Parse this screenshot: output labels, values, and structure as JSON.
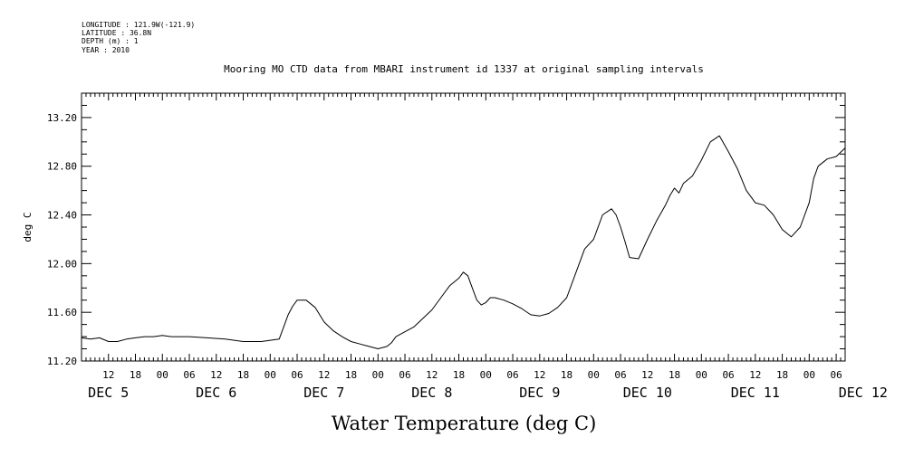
{
  "chart_data": {
    "type": "line",
    "title": "Mooring MO CTD data from MBARI instrument id 1337 at original sampling intervals",
    "header": {
      "longitude": "LONGITUDE : 121.9W(-121.9)",
      "latitude": "LATITUDE : 36.8N",
      "depth": "DEPTH (m) : 1",
      "year": "YEAR : 2010"
    },
    "xlabel": "Water Temperature (deg C)",
    "ylabel": "deg C",
    "xlim_hours": [
      0,
      170
    ],
    "ylim": [
      11.2,
      13.4
    ],
    "x_unit": "hours since 2010-12-05 06:00",
    "yticks": [
      11.2,
      11.6,
      12.0,
      12.4,
      12.8,
      13.2
    ],
    "ytick_labels": [
      "11.20",
      "11.60",
      "12.00",
      "12.40",
      "12.80",
      "13.20"
    ],
    "hour_tick_labels": [
      "12",
      "18",
      "00",
      "06",
      "12",
      "18",
      "00",
      "06",
      "12",
      "18",
      "00",
      "06",
      "12",
      "18",
      "00",
      "06",
      "12",
      "18",
      "00",
      "06",
      "12",
      "18",
      "00",
      "06",
      "12",
      "18",
      "00",
      "06"
    ],
    "day_labels": [
      "DEC  5",
      "DEC  6",
      "DEC  7",
      "DEC  8",
      "DEC  9",
      "DEC 10",
      "DEC 11",
      "DEC 12"
    ],
    "grid": false,
    "series": [
      {
        "x": [
          0,
          2,
          4,
          6,
          8,
          10,
          12,
          14,
          16,
          18,
          20,
          24,
          28,
          32,
          36,
          40,
          42,
          44,
          46,
          47,
          48,
          50,
          52,
          54,
          56,
          58,
          60,
          62,
          64,
          66,
          68,
          69,
          70,
          72,
          74,
          76,
          78,
          80,
          82,
          84,
          85,
          86,
          87,
          88,
          89,
          90,
          91,
          92,
          94,
          96,
          98,
          100,
          102,
          104,
          106,
          108,
          110,
          112,
          114,
          116,
          118,
          119,
          120,
          121,
          122,
          124,
          126,
          128,
          130,
          131,
          132,
          133,
          134,
          136,
          138,
          140,
          142,
          144,
          146,
          148,
          150,
          152,
          154,
          156,
          158,
          160,
          162,
          163,
          164,
          166,
          168,
          170
        ],
        "y": [
          11.39,
          11.38,
          11.39,
          11.36,
          11.36,
          11.38,
          11.39,
          11.4,
          11.4,
          11.41,
          11.4,
          11.4,
          11.39,
          11.38,
          11.36,
          11.36,
          11.37,
          11.38,
          11.58,
          11.65,
          11.7,
          11.7,
          11.64,
          11.52,
          11.45,
          11.4,
          11.36,
          11.34,
          11.32,
          11.3,
          11.32,
          11.35,
          11.4,
          11.44,
          11.48,
          11.55,
          11.62,
          11.72,
          11.82,
          11.88,
          11.93,
          11.9,
          11.8,
          11.7,
          11.66,
          11.68,
          11.72,
          11.72,
          11.7,
          11.67,
          11.63,
          11.58,
          11.57,
          11.59,
          11.64,
          11.72,
          11.92,
          12.12,
          12.2,
          12.4,
          12.45,
          12.4,
          12.3,
          12.18,
          12.05,
          12.04,
          12.2,
          12.35,
          12.48,
          12.56,
          12.62,
          12.58,
          12.66,
          12.72,
          12.85,
          13.0,
          13.05,
          12.92,
          12.78,
          12.6,
          12.5,
          12.48,
          12.4,
          12.28,
          12.22,
          12.3,
          12.5,
          12.7,
          12.8,
          12.86,
          12.88,
          12.95
        ]
      }
    ]
  }
}
